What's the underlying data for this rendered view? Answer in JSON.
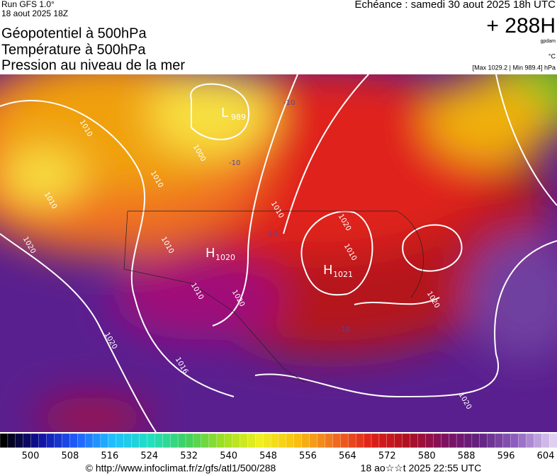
{
  "header": {
    "run": "Run GFS 1.0°",
    "date": "18 aout 2025 18Z",
    "titles": [
      "Géopotentiel à 500hPa",
      "Température à 500hPa",
      "Pression au niveau de la mer"
    ],
    "echeance": "Echéance : samedi 30 aout 2025 18h UTC",
    "lead": "+ 288H",
    "unit_geo": "gpdam",
    "unit_temp": "°C",
    "extremes": "[Max 1029.2 | Min 989.4] hPa"
  },
  "map": {
    "centers": [
      {
        "letter": "L",
        "value": "989"
      },
      {
        "letter": "H",
        "value": "1020"
      },
      {
        "letter": "H",
        "value": "1021"
      }
    ],
    "isobar_labels": [
      "1010",
      "1000",
      "1010",
      "1010",
      "1020",
      "1010",
      "1010",
      "1010",
      "1020",
      "1010",
      "1020",
      "1020",
      "1020",
      "1016",
      "1020"
    ],
    "temperature_labels": [
      "-10",
      "-10",
      "-10",
      "-10"
    ]
  },
  "legend": {
    "ticks": [
      "500",
      "508",
      "516",
      "524",
      "532",
      "540",
      "548",
      "556",
      "564",
      "572",
      "580",
      "588",
      "596",
      "604"
    ]
  },
  "footer": {
    "url": "© http://www.infoclimat.fr/z/gfs/atl1/500/288",
    "stamp": "18 ao☆☆t 2025 22:55 UTC"
  }
}
